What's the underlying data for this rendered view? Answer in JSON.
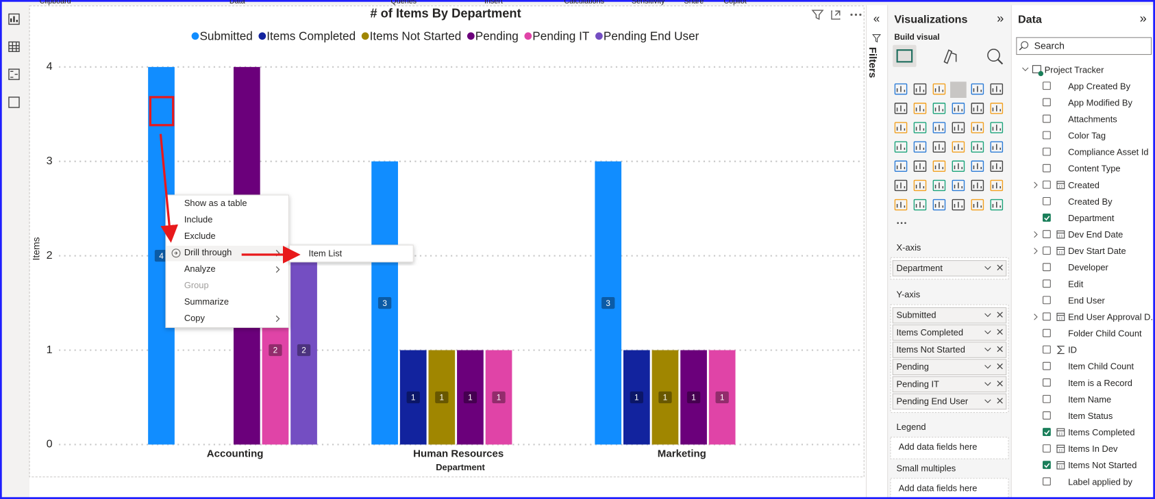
{
  "ribbon": [
    "Clipboard",
    "Data",
    "Queries",
    "Insert",
    "Calculations",
    "Sensitivity",
    "Share",
    "Copilot"
  ],
  "chart_data": {
    "type": "bar",
    "title": "# of Items By Department",
    "x_label": "Department",
    "y_label": "Items",
    "categories": [
      "Accounting",
      "Human Resources",
      "Marketing"
    ],
    "series": [
      {
        "name": "Submitted",
        "color": "#118DFF",
        "values": [
          4,
          3,
          3
        ]
      },
      {
        "name": "Items Completed",
        "color": "#12239E",
        "values": [
          null,
          1,
          1
        ]
      },
      {
        "name": "Items Not Started",
        "color": "#A08600",
        "values": [
          null,
          1,
          1
        ]
      },
      {
        "name": "Pending",
        "color": "#6B007B",
        "values": [
          4,
          1,
          1
        ]
      },
      {
        "name": "Pending IT",
        "color": "#E044A7",
        "values": [
          2,
          1,
          1
        ]
      },
      {
        "name": "Pending End User",
        "color": "#744EC2",
        "values": [
          2,
          null,
          null
        ]
      }
    ],
    "ylim": [
      0,
      4
    ],
    "yticks": [
      0,
      1,
      2,
      3,
      4
    ],
    "grid": true,
    "legend": "top"
  },
  "context_menu": {
    "items": [
      {
        "label": "Show as a table",
        "enabled": true,
        "submenu": false
      },
      {
        "label": "Include",
        "enabled": true,
        "submenu": false
      },
      {
        "label": "Exclude",
        "enabled": true,
        "submenu": false
      },
      {
        "label": "Drill through",
        "enabled": true,
        "submenu": true
      },
      {
        "label": "Analyze",
        "enabled": true,
        "submenu": true
      },
      {
        "label": "Group",
        "enabled": false,
        "submenu": false
      },
      {
        "label": "Summarize",
        "enabled": true,
        "submenu": false
      },
      {
        "label": "Copy",
        "enabled": true,
        "submenu": true
      }
    ],
    "submenu_items": [
      "Item List"
    ]
  },
  "filters_pane": {
    "title": "Filters"
  },
  "visualizations": {
    "title": "Visualizations",
    "subtitle": "Build visual",
    "wells": [
      {
        "label": "X-axis",
        "fields": [
          "Department"
        ]
      },
      {
        "label": "Y-axis",
        "fields": [
          "Submitted",
          "Items Completed",
          "Items Not Started",
          "Pending",
          "Pending IT",
          "Pending End User"
        ]
      },
      {
        "label": "Legend",
        "placeholder": "Add data fields here"
      },
      {
        "label": "Small multiples",
        "placeholder": "Add data fields here"
      }
    ]
  },
  "data_pane": {
    "title": "Data",
    "search_placeholder": "Search",
    "table": "Project Tracker",
    "fields": [
      {
        "name": "App Created By",
        "checked": false,
        "expandable": false,
        "icon": "none"
      },
      {
        "name": "App Modified By",
        "checked": false,
        "expandable": false,
        "icon": "none"
      },
      {
        "name": "Attachments",
        "checked": false,
        "expandable": false,
        "icon": "none"
      },
      {
        "name": "Color Tag",
        "checked": false,
        "expandable": false,
        "icon": "none"
      },
      {
        "name": "Compliance Asset Id",
        "checked": false,
        "expandable": false,
        "icon": "none"
      },
      {
        "name": "Content Type",
        "checked": false,
        "expandable": false,
        "icon": "none"
      },
      {
        "name": "Created",
        "checked": false,
        "expandable": true,
        "icon": "calendar"
      },
      {
        "name": "Created By",
        "checked": false,
        "expandable": false,
        "icon": "none"
      },
      {
        "name": "Department",
        "checked": true,
        "expandable": false,
        "icon": "none"
      },
      {
        "name": "Dev End Date",
        "checked": false,
        "expandable": true,
        "icon": "calendar"
      },
      {
        "name": "Dev Start Date",
        "checked": false,
        "expandable": true,
        "icon": "calendar"
      },
      {
        "name": "Developer",
        "checked": false,
        "expandable": false,
        "icon": "none"
      },
      {
        "name": "Edit",
        "checked": false,
        "expandable": false,
        "icon": "none"
      },
      {
        "name": "End User",
        "checked": false,
        "expandable": false,
        "icon": "none"
      },
      {
        "name": "End User Approval D...",
        "checked": false,
        "expandable": true,
        "icon": "calendar"
      },
      {
        "name": "Folder Child Count",
        "checked": false,
        "expandable": false,
        "icon": "none"
      },
      {
        "name": "ID",
        "checked": false,
        "expandable": false,
        "icon": "sigma"
      },
      {
        "name": "Item Child Count",
        "checked": false,
        "expandable": false,
        "icon": "none"
      },
      {
        "name": "Item is a Record",
        "checked": false,
        "expandable": false,
        "icon": "none"
      },
      {
        "name": "Item Name",
        "checked": false,
        "expandable": false,
        "icon": "none"
      },
      {
        "name": "Item Status",
        "checked": false,
        "expandable": false,
        "icon": "none"
      },
      {
        "name": "Items Completed",
        "checked": true,
        "expandable": false,
        "icon": "calc"
      },
      {
        "name": "Items In Dev",
        "checked": false,
        "expandable": false,
        "icon": "calc"
      },
      {
        "name": "Items Not Started",
        "checked": true,
        "expandable": false,
        "icon": "calc"
      },
      {
        "name": "Label applied by",
        "checked": false,
        "expandable": false,
        "icon": "none"
      }
    ]
  }
}
